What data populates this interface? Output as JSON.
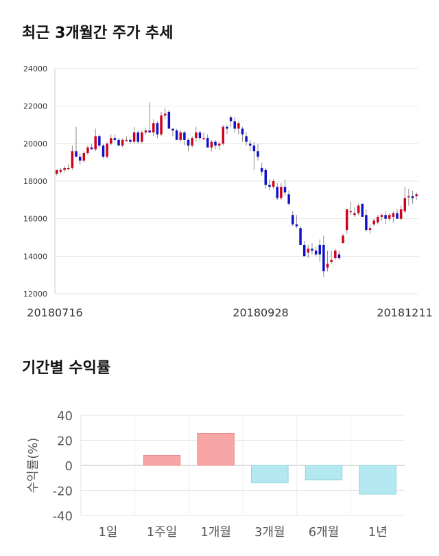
{
  "section1": {
    "title": "최근 3개월간 주가 추세"
  },
  "section2": {
    "title": "기간별 수익률"
  },
  "chart_data": [
    {
      "type": "candlestick",
      "ylim": [
        12000,
        24000
      ],
      "yticks": [
        "24000",
        "22000",
        "20000",
        "18000",
        "16000",
        "14000",
        "12000"
      ],
      "xlabels": [
        "20180716",
        "20180928",
        "20181211"
      ],
      "grid": true,
      "up_color": "#d0021b",
      "down_color": "#1010c8",
      "candles": [
        [
          18400,
          18600,
          18300,
          18600
        ],
        [
          18500,
          18700,
          18400,
          18600
        ],
        [
          18600,
          18800,
          18500,
          18700
        ],
        [
          18700,
          18900,
          18600,
          18700
        ],
        [
          18700,
          19900,
          18600,
          19600
        ],
        [
          19600,
          20900,
          19400,
          19300
        ],
        [
          19300,
          19500,
          18900,
          19100
        ],
        [
          19100,
          19600,
          19000,
          19500
        ],
        [
          19500,
          19900,
          19400,
          19800
        ],
        [
          19800,
          20000,
          19700,
          19700
        ],
        [
          19700,
          20800,
          19600,
          20400
        ],
        [
          20400,
          20500,
          19800,
          19900
        ],
        [
          19900,
          20000,
          19200,
          19300
        ],
        [
          19300,
          20100,
          19200,
          20000
        ],
        [
          20000,
          20500,
          19900,
          20300
        ],
        [
          20300,
          20500,
          20100,
          20200
        ],
        [
          20200,
          20300,
          19900,
          19900
        ],
        [
          19900,
          20300,
          19800,
          20200
        ],
        [
          20200,
          20400,
          20100,
          20200
        ],
        [
          20200,
          20300,
          20000,
          20100
        ],
        [
          20100,
          20900,
          20000,
          20600
        ],
        [
          20600,
          20700,
          20000,
          20100
        ],
        [
          20100,
          20700,
          20000,
          20600
        ],
        [
          20600,
          20800,
          20500,
          20700
        ],
        [
          20700,
          22200,
          20600,
          20600
        ],
        [
          20600,
          21300,
          20400,
          21100
        ],
        [
          21100,
          21200,
          20300,
          20500
        ],
        [
          20500,
          21700,
          20400,
          21500
        ],
        [
          21500,
          21900,
          21300,
          21600
        ],
        [
          21700,
          21800,
          20800,
          20800
        ],
        [
          20800,
          20800,
          20400,
          20700
        ],
        [
          20700,
          20800,
          20200,
          20200
        ],
        [
          20200,
          20700,
          20100,
          20600
        ],
        [
          20600,
          20700,
          19900,
          20200
        ],
        [
          20200,
          20300,
          19600,
          19900
        ],
        [
          19900,
          20400,
          19800,
          20300
        ],
        [
          20300,
          20900,
          20100,
          20600
        ],
        [
          20600,
          20700,
          20200,
          20300
        ],
        [
          20300,
          20600,
          20200,
          20300
        ],
        [
          20300,
          20500,
          19800,
          19800
        ],
        [
          19800,
          20200,
          19600,
          20100
        ],
        [
          20100,
          20200,
          19700,
          19900
        ],
        [
          19900,
          20100,
          19700,
          20000
        ],
        [
          20000,
          21000,
          19900,
          20900
        ],
        [
          20900,
          21000,
          20500,
          20800
        ],
        [
          21400,
          21500,
          20900,
          21200
        ],
        [
          21200,
          21400,
          20600,
          20800
        ],
        [
          20800,
          21200,
          20500,
          21100
        ],
        [
          20800,
          20900,
          20100,
          20500
        ],
        [
          20400,
          20600,
          19900,
          20100
        ],
        [
          20000,
          20200,
          19600,
          19900
        ],
        [
          19900,
          20100,
          18600,
          19600
        ],
        [
          19600,
          20000,
          19100,
          19300
        ],
        [
          18700,
          19000,
          18300,
          18500
        ],
        [
          18600,
          18700,
          17600,
          17800
        ],
        [
          17800,
          18100,
          17500,
          17700
        ],
        [
          17700,
          18100,
          17600,
          18000
        ],
        [
          17700,
          17900,
          17000,
          17100
        ],
        [
          17100,
          17900,
          17000,
          17700
        ],
        [
          17700,
          18100,
          17200,
          17400
        ],
        [
          17300,
          17500,
          16700,
          16800
        ],
        [
          16200,
          16400,
          15600,
          15700
        ],
        [
          15700,
          16200,
          15500,
          15600
        ],
        [
          15500,
          15600,
          14600,
          14600
        ],
        [
          14600,
          14800,
          14000,
          14000
        ],
        [
          14200,
          14600,
          13900,
          14400
        ],
        [
          14400,
          14700,
          14100,
          14300
        ],
        [
          14300,
          14500,
          14000,
          14100
        ],
        [
          14600,
          14900,
          13700,
          14100
        ],
        [
          14600,
          15100,
          12900,
          13200
        ],
        [
          13400,
          14300,
          13200,
          13600
        ],
        [
          13700,
          14300,
          13600,
          13800
        ],
        [
          13900,
          14400,
          13800,
          14300
        ],
        [
          14100,
          14300,
          13800,
          13900
        ],
        [
          14700,
          15200,
          14700,
          15100
        ],
        [
          15400,
          16500,
          15200,
          16500
        ],
        [
          16400,
          16900,
          16200,
          16400
        ],
        [
          16200,
          16600,
          16100,
          16300
        ],
        [
          16300,
          16800,
          16200,
          16700
        ],
        [
          16800,
          16800,
          16100,
          16100
        ],
        [
          16200,
          16500,
          15300,
          15400
        ],
        [
          15400,
          15700,
          15200,
          15500
        ],
        [
          15700,
          16000,
          15600,
          15900
        ],
        [
          15800,
          16200,
          15700,
          16100
        ],
        [
          16100,
          16300,
          15900,
          16200
        ],
        [
          16200,
          16400,
          15700,
          16000
        ],
        [
          16000,
          16300,
          15900,
          16200
        ],
        [
          16100,
          16400,
          15800,
          16300
        ],
        [
          16300,
          16500,
          16000,
          16000
        ],
        [
          16000,
          16700,
          15900,
          16500
        ],
        [
          16400,
          17700,
          16300,
          17100
        ],
        [
          17200,
          17600,
          16700,
          17200
        ],
        [
          17200,
          17500,
          16800,
          17100
        ],
        [
          17200,
          17400,
          17000,
          17300
        ]
      ]
    },
    {
      "type": "bar",
      "categories": [
        "1일",
        "1주일",
        "1개월",
        "3개월",
        "6개월",
        "1년"
      ],
      "values": [
        0,
        8,
        25.5,
        -14,
        -11.5,
        -23
      ],
      "ylabel": "수익률(%)",
      "ylim": [
        -40,
        40
      ],
      "yticks": [
        "40",
        "20",
        "0",
        "-20",
        "-40"
      ],
      "grid": true,
      "positive_color": "#f7a5a5",
      "negative_color": "#b3e8f0"
    }
  ]
}
